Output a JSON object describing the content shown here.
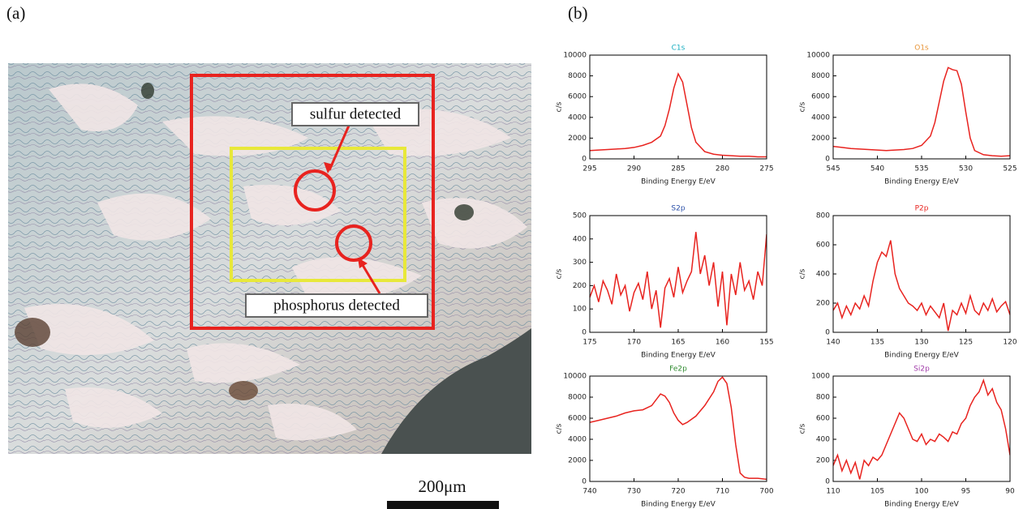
{
  "panels": {
    "a": {
      "label": "(a)",
      "annotations": [
        "sulfur detected",
        "phosphorus detected"
      ],
      "scale_bar": "200μm"
    },
    "b": {
      "label": "(b)"
    }
  },
  "chart_data": [
    {
      "type": "line",
      "title": "C1s",
      "title_color": "#1aaec0",
      "xlabel": "Binding Energy E/eV",
      "ylabel": "c/s",
      "color": "#e8231f",
      "xlim": [
        295,
        275
      ],
      "xticks": [
        295,
        290,
        285,
        280,
        275
      ],
      "ylim": [
        0,
        10000
      ],
      "yticks": [
        0,
        2000,
        4000,
        6000,
        8000,
        10000
      ],
      "x": [
        295,
        294,
        293,
        292,
        291,
        290,
        289,
        288,
        287,
        286.5,
        286,
        285.5,
        285,
        284.5,
        284,
        283.5,
        283,
        282,
        281,
        280,
        279,
        278,
        277,
        276,
        275
      ],
      "values": [
        800,
        850,
        900,
        950,
        1000,
        1100,
        1300,
        1600,
        2200,
        3200,
        4800,
        6800,
        8200,
        7400,
        5200,
        3000,
        1600,
        700,
        450,
        350,
        300,
        250,
        250,
        200,
        200
      ]
    },
    {
      "type": "line",
      "title": "O1s",
      "title_color": "#e8963a",
      "xlabel": "Binding Energy E/eV",
      "ylabel": "c/s",
      "color": "#e8231f",
      "xlim": [
        545,
        525
      ],
      "xticks": [
        545,
        540,
        535,
        530,
        525
      ],
      "ylim": [
        0,
        10000
      ],
      "yticks": [
        0,
        2000,
        4000,
        6000,
        8000,
        10000
      ],
      "x": [
        545,
        544,
        543,
        542,
        541,
        540,
        539,
        538,
        537,
        536,
        535,
        534,
        533.5,
        533,
        532.5,
        532,
        531.5,
        531,
        530.5,
        530,
        529.5,
        529,
        528,
        527,
        526,
        525
      ],
      "values": [
        1200,
        1100,
        1000,
        950,
        900,
        850,
        800,
        850,
        900,
        1000,
        1300,
        2200,
        3500,
        5500,
        7500,
        8800,
        8600,
        8500,
        7200,
        4500,
        2000,
        800,
        400,
        300,
        250,
        300
      ]
    },
    {
      "type": "line",
      "title": "S2p",
      "title_color": "#2a4fa8",
      "xlabel": "Binding Energy E/eV",
      "ylabel": "c/s",
      "color": "#e8231f",
      "xlim": [
        175,
        155
      ],
      "xticks": [
        175,
        170,
        165,
        160,
        155
      ],
      "ylim": [
        0,
        500
      ],
      "yticks": [
        0,
        100,
        200,
        300,
        400,
        500
      ],
      "x": [
        175,
        174.5,
        174,
        173.5,
        173,
        172.5,
        172,
        171.5,
        171,
        170.5,
        170,
        169.5,
        169,
        168.5,
        168,
        167.5,
        167,
        166.5,
        166,
        165.5,
        165,
        164.5,
        164,
        163.5,
        163,
        162.5,
        162,
        161.5,
        161,
        160.5,
        160,
        159.5,
        159,
        158.5,
        158,
        157.5,
        157,
        156.5,
        156,
        155.5,
        155
      ],
      "values": [
        150,
        200,
        130,
        220,
        180,
        120,
        250,
        160,
        200,
        90,
        170,
        210,
        140,
        260,
        100,
        180,
        20,
        190,
        230,
        150,
        280,
        170,
        220,
        260,
        430,
        250,
        330,
        200,
        300,
        110,
        260,
        30,
        250,
        160,
        300,
        180,
        220,
        140,
        260,
        200,
        420
      ]
    },
    {
      "type": "line",
      "title": "P2p",
      "title_color": "#e8231f",
      "xlabel": "Binding Energy E/eV",
      "ylabel": "c/s",
      "color": "#e8231f",
      "xlim": [
        140,
        120
      ],
      "xticks": [
        140,
        135,
        130,
        125,
        120
      ],
      "ylim": [
        0,
        800
      ],
      "yticks": [
        0,
        200,
        400,
        600,
        800
      ],
      "x": [
        140,
        139.5,
        139,
        138.5,
        138,
        137.5,
        137,
        136.5,
        136,
        135.5,
        135,
        134.5,
        134,
        133.5,
        133,
        132.5,
        132,
        131.5,
        131,
        130.5,
        130,
        129.5,
        129,
        128.5,
        128,
        127.5,
        127,
        126.5,
        126,
        125.5,
        125,
        124.5,
        124,
        123.5,
        123,
        122.5,
        122,
        121.5,
        121,
        120.5,
        120
      ],
      "values": [
        150,
        200,
        100,
        180,
        120,
        200,
        160,
        250,
        180,
        350,
        480,
        550,
        520,
        630,
        400,
        300,
        250,
        200,
        180,
        150,
        200,
        120,
        180,
        140,
        100,
        200,
        10,
        150,
        120,
        200,
        130,
        250,
        150,
        120,
        200,
        150,
        230,
        140,
        180,
        210,
        120
      ]
    },
    {
      "type": "line",
      "title": "Fe2p",
      "title_color": "#2f8a2f",
      "xlabel": "Binding Energy E/eV",
      "ylabel": "c/s",
      "color": "#e8231f",
      "xlim": [
        740,
        700
      ],
      "xticks": [
        740,
        730,
        720,
        710,
        700
      ],
      "ylim": [
        0,
        10000
      ],
      "yticks": [
        0,
        2000,
        4000,
        6000,
        8000,
        10000
      ],
      "x": [
        740,
        738,
        736,
        734,
        732,
        730,
        728,
        726,
        724,
        723,
        722,
        721,
        720,
        719,
        718,
        716,
        714,
        712,
        711,
        710,
        709,
        708,
        707,
        706,
        705,
        704,
        702,
        700
      ],
      "values": [
        5600,
        5800,
        6000,
        6200,
        6500,
        6700,
        6800,
        7200,
        8300,
        8100,
        7500,
        6500,
        5800,
        5400,
        5600,
        6200,
        7200,
        8500,
        9500,
        9900,
        9300,
        7000,
        3500,
        800,
        400,
        300,
        300,
        200
      ]
    },
    {
      "type": "line",
      "title": "Si2p",
      "title_color": "#a03aa8",
      "xlabel": "Binding Energy E/eV",
      "ylabel": "c/s",
      "color": "#e8231f",
      "xlim": [
        110,
        90
      ],
      "xticks": [
        110,
        105,
        100,
        95,
        90
      ],
      "ylim": [
        0,
        1000
      ],
      "yticks": [
        0,
        200,
        400,
        600,
        800,
        1000
      ],
      "x": [
        110,
        109.5,
        109,
        108.5,
        108,
        107.5,
        107,
        106.5,
        106,
        105.5,
        105,
        104.5,
        104,
        103.5,
        103,
        102.5,
        102,
        101.5,
        101,
        100.5,
        100,
        99.5,
        99,
        98.5,
        98,
        97.5,
        97,
        96.5,
        96,
        95.5,
        95,
        94.5,
        94,
        93.5,
        93,
        92.5,
        92,
        91.5,
        91,
        90.5,
        90
      ],
      "values": [
        150,
        250,
        100,
        200,
        80,
        180,
        20,
        200,
        150,
        230,
        200,
        250,
        350,
        450,
        550,
        650,
        600,
        500,
        400,
        380,
        450,
        350,
        400,
        380,
        450,
        420,
        380,
        470,
        450,
        550,
        600,
        720,
        800,
        850,
        960,
        820,
        880,
        750,
        680,
        500,
        250
      ]
    }
  ]
}
